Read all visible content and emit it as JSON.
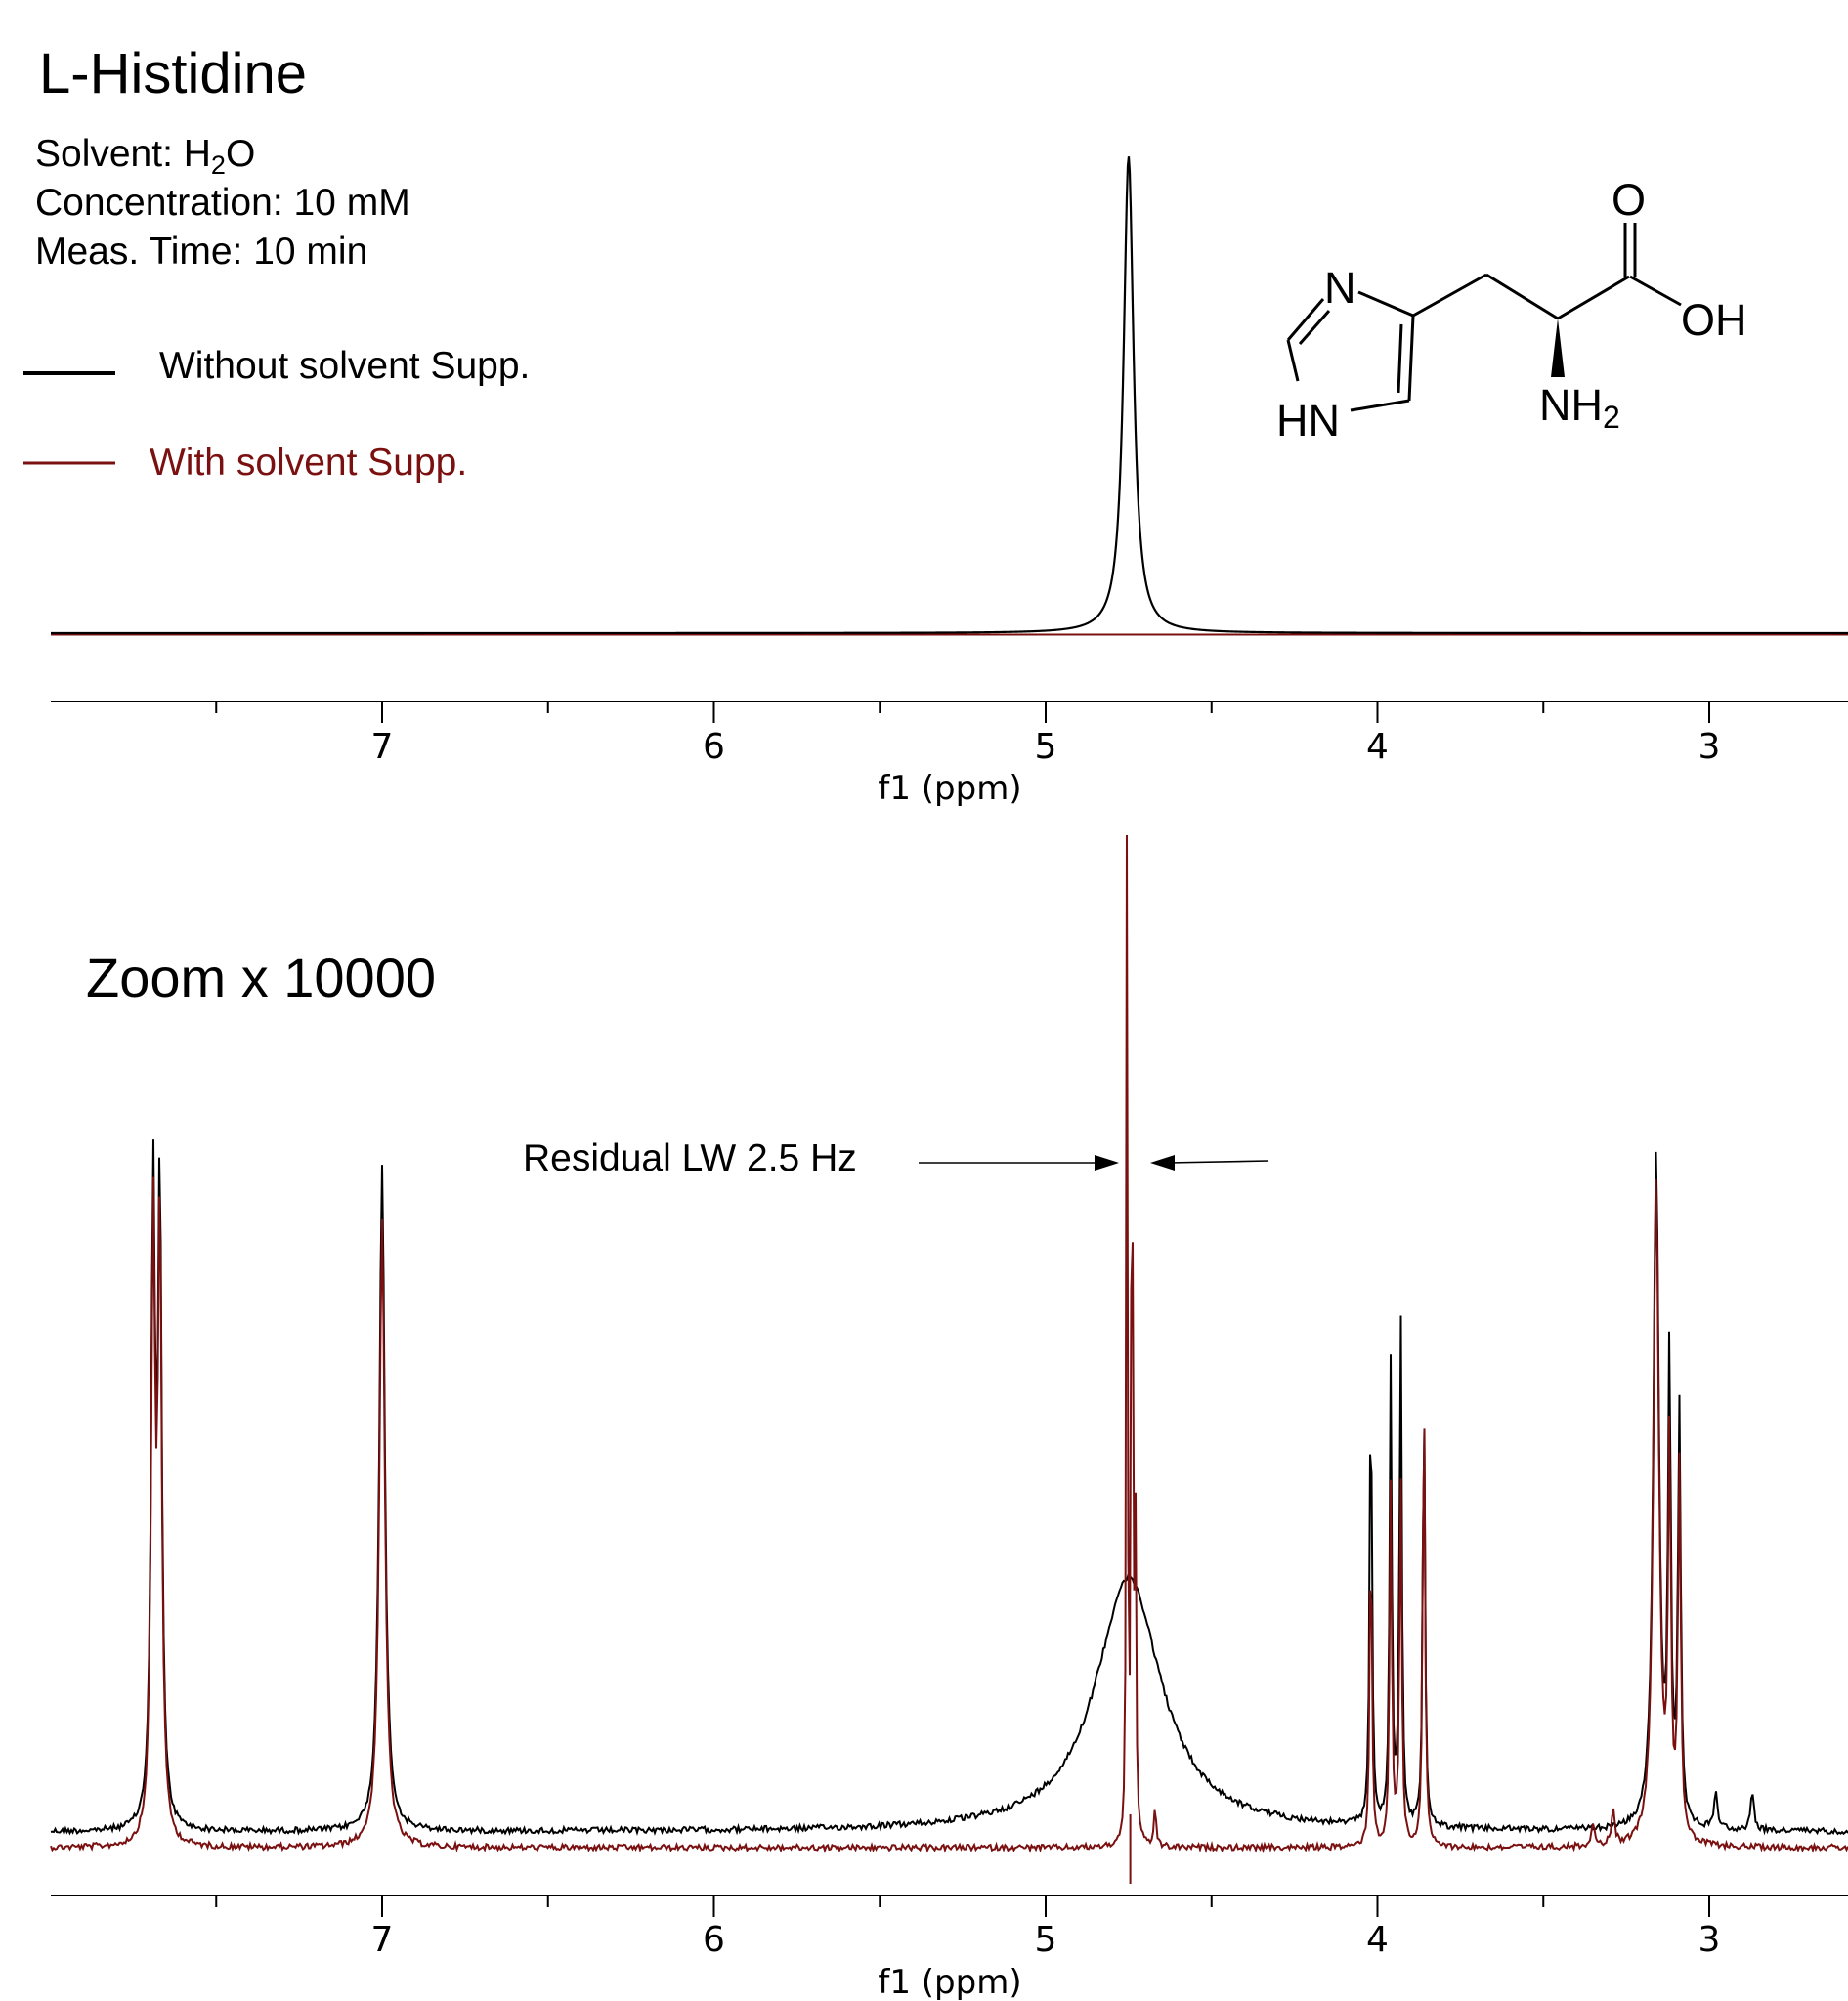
{
  "header": {
    "title": "L-Histidine",
    "solvent_prefix": "Solvent: H",
    "solvent_sub": "2",
    "solvent_suffix": "O",
    "concentration": "Concentration: 10 mM",
    "meas_time": "Meas. Time: 10 min"
  },
  "legend": {
    "items": [
      {
        "label": "Without solvent Supp.",
        "color": "#000000"
      },
      {
        "label": "With solvent Supp.",
        "color": "#7a1010"
      }
    ]
  },
  "structure": {
    "atoms": {
      "n": "N",
      "hn": "HN",
      "o": "O",
      "oh": "OH",
      "nh": "NH",
      "nh_sub": "2"
    }
  },
  "chart_data": [
    {
      "type": "line",
      "panel": "full-spectrum",
      "xlabel": "f1 (ppm)",
      "x_ticks": [
        "7",
        "6",
        "5",
        "4",
        "3"
      ],
      "xlim": [
        7.85,
        2.65
      ],
      "x_reversed": true,
      "series": [
        {
          "name": "Without solvent Supp.",
          "color": "#000000",
          "peaks": [
            {
              "ppm": 4.75,
              "relative_height": 1.0
            }
          ]
        },
        {
          "name": "With solvent Supp.",
          "color": "#7a1010",
          "peaks": []
        }
      ]
    },
    {
      "type": "line",
      "panel": "zoom",
      "label": "Zoom x 10000",
      "xlabel": "f1 (ppm)",
      "x_ticks": [
        "7",
        "6",
        "5",
        "4",
        "3"
      ],
      "xlim": [
        7.85,
        2.65
      ],
      "x_reversed": true,
      "annotation": "Residual LW 2.5 Hz",
      "series": [
        {
          "name": "Without solvent Supp.",
          "color": "#000000",
          "peaks_ppm": [
            7.69,
            7.67,
            7.0,
            4.02,
            3.96,
            3.93,
            3.86,
            3.16,
            3.12,
            3.09,
            2.98,
            2.87
          ]
        },
        {
          "name": "With solvent Supp.",
          "color": "#7a1010",
          "peaks_ppm": [
            7.69,
            7.67,
            7.0,
            4.755,
            4.74,
            4.73,
            4.67,
            4.02,
            3.96,
            3.93,
            3.86,
            3.16,
            3.12,
            3.09
          ]
        }
      ]
    }
  ]
}
